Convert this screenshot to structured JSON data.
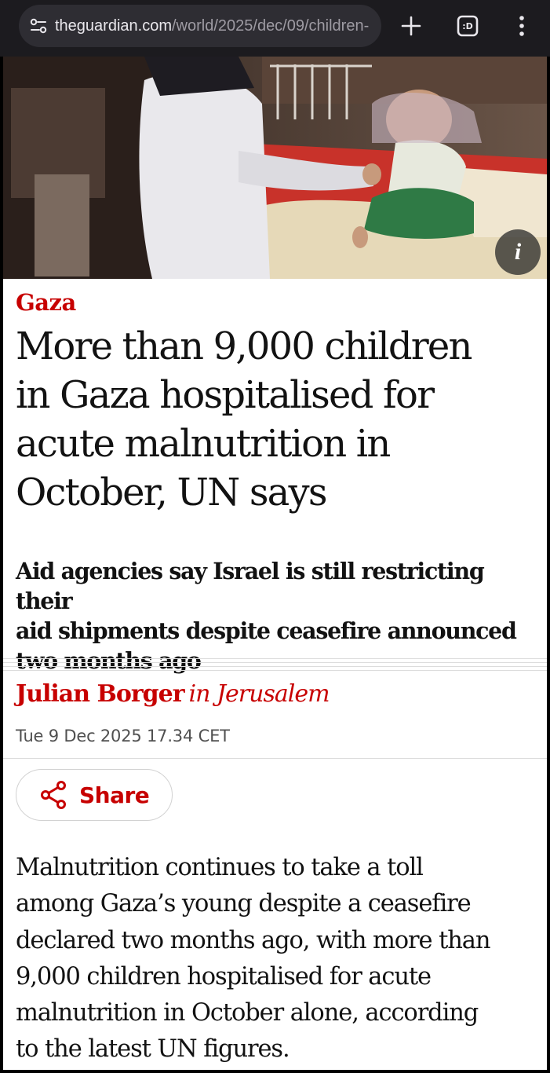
{
  "browser": {
    "url_host": "theguardian.com",
    "url_path": "/world/2025/dec/09/children-",
    "icons": {
      "site_settings": "tune-icon",
      "new_tab": "plus-icon",
      "tab_switcher": "tab-count-icon",
      "menu": "more-vert-icon"
    },
    "tab_switcher_label": ":D"
  },
  "article": {
    "hero_image": {
      "alt_icon": "info-icon",
      "info_label": "i"
    },
    "kicker": "Gaza",
    "headline_lines": [
      "More than 9,000 children",
      "in Gaza hospitalised for",
      "acute malnutrition in",
      "October, UN says"
    ],
    "standfirst_lines": [
      "Aid agencies say Israel is still restricting their",
      "aid shipments despite ceasefire announced",
      "two months ago"
    ],
    "byline": {
      "author": "Julian Borger",
      "location": "in Jerusalem"
    },
    "dateline": "Tue 9 Dec 2025 17.34 CET",
    "share": {
      "label": "Share",
      "icon": "share-icon"
    },
    "body_lines": [
      "Malnutrition continues to take a toll",
      "among Gaza’s young despite a ceasefire",
      "declared two months ago, with more than",
      "9,000 children hospitalised for acute",
      "malnutrition in October alone, according",
      "to the latest UN figures."
    ]
  },
  "colors": {
    "accent": "#c70000",
    "text": "#121212",
    "chrome": "#1c1b1f",
    "urlbar": "#2e2d33"
  }
}
